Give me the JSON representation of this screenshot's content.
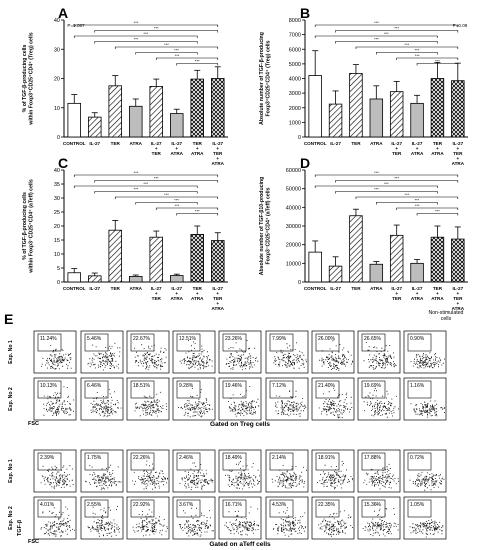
{
  "panel_labels": {
    "a": "A",
    "b": "B",
    "c": "C",
    "d": "D",
    "e": "E"
  },
  "chart_data": [
    {
      "type": "bar",
      "panel": "A",
      "ylabel": "% of TGF-β-producing cells within Foxp3⁺CD25⁺CD4⁺ (Treg) cells",
      "ylim": [
        0,
        40
      ],
      "yticks": [
        "0",
        "10",
        "20",
        "30",
        "40"
      ],
      "categories": [
        "CONTROL",
        "IL-27",
        "TER",
        "ATRA",
        "IL-27 + TER",
        "IL-27 + ATRA",
        "TER + ATRA",
        "IL-27 + TER + ATRA"
      ],
      "values": [
        11.5,
        6.8,
        17.5,
        10.5,
        17.3,
        8.0,
        19.8,
        20.0
      ],
      "errors": [
        3.0,
        1.5,
        3.5,
        2.5,
        2.5,
        1.5,
        3.0,
        4.0
      ],
      "patterns": [
        "white",
        "diag",
        "diag",
        "gray",
        "diag",
        "gray",
        "cross",
        "cross"
      ],
      "sig_text": "P=0.087"
    },
    {
      "type": "bar",
      "panel": "B",
      "ylabel": "Absolute number of TGF-β-producing Foxp3⁺CD25⁺CD4⁺ (Treg) cells",
      "ylim": [
        0,
        8000
      ],
      "yticks": [
        "0",
        "1000",
        "2000",
        "3000",
        "4000",
        "5000",
        "6000",
        "7000",
        "8000"
      ],
      "categories": [
        "CONTROL",
        "IL-27",
        "TER",
        "ATRA",
        "IL-27 + TER",
        "IL-27 + ATRA",
        "TER + ATRA",
        "IL-27 + TER + ATRA"
      ],
      "values": [
        4200,
        2250,
        4350,
        2600,
        3100,
        2300,
        4000,
        3850
      ],
      "errors": [
        1700,
        900,
        600,
        900,
        700,
        550,
        1100,
        1200
      ],
      "patterns": [
        "white",
        "diag",
        "diag",
        "gray",
        "diag",
        "gray",
        "cross",
        "cross"
      ],
      "sig_text": "P=0.09"
    },
    {
      "type": "bar",
      "panel": "C",
      "ylabel": "% of TGF-β-producing cells within Foxp3⁻CD25⁺CD4⁺ (aTeff) cells",
      "ylim": [
        0,
        40
      ],
      "yticks": [
        "0",
        "5",
        "10",
        "15",
        "20",
        "25",
        "30",
        "35",
        "40"
      ],
      "categories": [
        "CONTROL",
        "IL-27",
        "TER",
        "ATRA",
        "IL-27 + TER",
        "IL-27 + ATRA",
        "TER + ATRA",
        "IL-27 + TER + ATRA"
      ],
      "values": [
        3.3,
        2.2,
        18.5,
        2.0,
        16.0,
        2.3,
        17.0,
        14.8
      ],
      "errors": [
        1.5,
        1.0,
        3.5,
        0.5,
        2.2,
        0.5,
        3.0,
        2.8
      ],
      "patterns": [
        "white",
        "diag",
        "diag",
        "gray",
        "diag",
        "gray",
        "cross",
        "cross"
      ]
    },
    {
      "type": "bar",
      "panel": "D",
      "ylabel": "Absolute number of TGF-β10-producing Foxp3⁻CD25⁺CD4⁺ (aTeff) cells",
      "ylim": [
        0,
        60000
      ],
      "yticks": [
        "0",
        "10000",
        "20000",
        "30000",
        "40000",
        "50000",
        "60000"
      ],
      "categories": [
        "CONTROL",
        "IL-27",
        "TER",
        "ATRA",
        "IL-27 + TER",
        "IL-27 + ATRA",
        "TER + ATRA",
        "IL-27 + TER + ATRA"
      ],
      "values": [
        16000,
        8500,
        35500,
        9500,
        25000,
        10000,
        24000,
        23000
      ],
      "errors": [
        6000,
        5000,
        3500,
        1500,
        5500,
        2000,
        6000,
        6500
      ],
      "patterns": [
        "white",
        "diag",
        "diag",
        "gray",
        "diag",
        "gray",
        "cross",
        "cross"
      ]
    }
  ],
  "flow": {
    "header": "Non-stimulated cells",
    "treg_caption": "Gated on Treg cells",
    "ateff_caption": "Gated on aTeff cells",
    "x_axis": "FSC",
    "y_axis": "TGF-β",
    "rows": [
      {
        "label": "Exp. No 1",
        "values": [
          "11.24%",
          "5.46%",
          "22.67%",
          "12.51%",
          "23.26%",
          "7.99%",
          "26.00%",
          "26.65%",
          "0.90%"
        ]
      },
      {
        "label": "Exp. No 2",
        "values": [
          "10.13%",
          "6.46%",
          "18.51%",
          "9.28%",
          "19.46%",
          "7.12%",
          "21.40%",
          "19.69%",
          "1.16%"
        ]
      },
      {
        "label": "Exp. No 1",
        "values": [
          "2.39%",
          "1.75%",
          "22.26%",
          "2.46%",
          "18.49%",
          "2.14%",
          "18.91%",
          "17.88%",
          "0.72%"
        ]
      },
      {
        "label": "Exp. No 2",
        "values": [
          "4.01%",
          "2.55%",
          "22.92%",
          "3.67%",
          "16.71%",
          "4.53%",
          "22.35%",
          "15.36%",
          "1.05%"
        ]
      }
    ]
  }
}
